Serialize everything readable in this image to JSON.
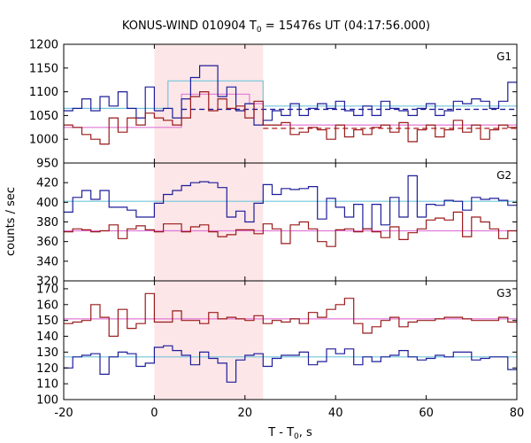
{
  "chart_data": {
    "type": "line",
    "title_main": "KONUS-WIND 010904 T",
    "title_sub": "0",
    "title_rest": " = 15476s UT (04:17:56.000)",
    "xlabel_main": "T - T",
    "xlabel_sub": "0",
    "xlabel_rest": ", s",
    "ylabel": "counts / sec",
    "xlim": [
      -20,
      80
    ],
    "x_ticks": [
      "-20",
      "0",
      "20",
      "40",
      "60",
      "80"
    ],
    "x_tick_values": [
      -20,
      0,
      20,
      40,
      60,
      80
    ],
    "highlight_interval": [
      0,
      24
    ],
    "colors": {
      "blue": "#1e1e9a",
      "red": "#9a1a1a",
      "cyan": "#72c6dc",
      "pink": "#e07ad6",
      "highlight": "#fde6e8",
      "dash_blue": "#1e1e9a",
      "dash_red": "#b01c1c"
    },
    "step_edges": [
      -20,
      -18,
      -16,
      -14,
      -12,
      -10,
      -8,
      -6,
      -4,
      -2,
      0,
      2,
      4,
      6,
      8,
      10,
      12,
      14,
      16,
      18,
      20,
      22,
      24,
      26,
      28,
      30,
      32,
      34,
      36,
      38,
      40,
      42,
      44,
      46,
      48,
      50,
      52,
      54,
      56,
      58,
      60,
      62,
      64,
      66,
      68,
      70,
      72,
      74,
      76,
      78,
      80
    ],
    "panels": [
      {
        "label": "G1",
        "ylim": [
          950,
          1200
        ],
        "y_ticks": [
          "950",
          "1000",
          "1050",
          "1100",
          "1150",
          "1200"
        ],
        "y_tick_values": [
          950,
          1000,
          1050,
          1100,
          1150,
          1200
        ],
        "series": [
          {
            "color": "blue",
            "values": [
              1060,
              1065,
              1085,
              1060,
              1090,
              1070,
              1100,
              1065,
              1045,
              1110,
              1060,
              1065,
              1045,
              1085,
              1130,
              1155,
              1155,
              1090,
              1110,
              1060,
              1075,
              1030,
              1040,
              1060,
              1050,
              1075,
              1050,
              1065,
              1075,
              1065,
              1080,
              1060,
              1050,
              1070,
              1050,
              1080,
              1065,
              1060,
              1050,
              1065,
              1075,
              1050,
              1060,
              1080,
              1075,
              1085,
              1080,
              1065,
              1080,
              1120
            ]
          },
          {
            "color": "red",
            "values": [
              1030,
              1025,
              1010,
              1000,
              990,
              1045,
              1015,
              1045,
              1030,
              1055,
              1045,
              1040,
              1030,
              1045,
              1090,
              1100,
              1060,
              1085,
              1065,
              1070,
              1045,
              1080,
              1030,
              1030,
              1035,
              1010,
              1015,
              1025,
              1020,
              1000,
              1030,
              1005,
              1020,
              1010,
              1025,
              1030,
              1015,
              1035,
              995,
              1020,
              1030,
              1005,
              1020,
              1040,
              1015,
              1030,
              1000,
              1020,
              1030,
              1025
            ]
          }
        ],
        "steps": [
          {
            "color": "cyan",
            "points": [
              [
                -20,
                1065
              ],
              [
                3,
                1065
              ],
              [
                3,
                1123
              ],
              [
                24,
                1123
              ],
              [
                24,
                1070
              ],
              [
                80,
                1070
              ]
            ]
          },
          {
            "color": "pink",
            "points": [
              [
                -20,
                1025
              ],
              [
                6,
                1025
              ],
              [
                6,
                1095
              ],
              [
                21,
                1095
              ],
              [
                21,
                1075
              ],
              [
                24,
                1075
              ],
              [
                24,
                1030
              ],
              [
                80,
                1030
              ]
            ]
          }
        ],
        "dashed": [
          {
            "color": "dash_blue",
            "y": 1063,
            "x": [
              6,
              80
            ]
          },
          {
            "color": "dash_red",
            "y": 1023,
            "x": [
              24,
              80
            ]
          }
        ]
      },
      {
        "label": "G2",
        "ylim": [
          320,
          440
        ],
        "y_ticks": [
          "320",
          "340",
          "360",
          "380",
          "400",
          "420"
        ],
        "y_tick_values": [
          320,
          340,
          360,
          380,
          400,
          420
        ],
        "series": [
          {
            "color": "blue",
            "values": [
              390,
              405,
              412,
              403,
              412,
              395,
              395,
              392,
              385,
              385,
              399,
              408,
              412,
              417,
              420,
              421,
              420,
              415,
              385,
              391,
              380,
              399,
              418,
              408,
              414,
              413,
              414,
              416,
              383,
              404,
              395,
              385,
              398,
              373,
              398,
              377,
              405,
              385,
              427,
              385,
              398,
              397,
              402,
              401,
              392,
              405,
              403,
              404,
              402,
              397
            ]
          },
          {
            "color": "red",
            "values": [
              370,
              373,
              372,
              370,
              371,
              377,
              363,
              373,
              376,
              372,
              370,
              378,
              378,
              370,
              375,
              377,
              370,
              365,
              367,
              372,
              372,
              368,
              378,
              373,
              358,
              377,
              380,
              373,
              360,
              355,
              372,
              373,
              370,
              373,
              370,
              364,
              375,
              362,
              369,
              373,
              382,
              384,
              382,
              390,
              365,
              385,
              380,
              373,
              363,
              371
            ]
          }
        ],
        "steps": [
          {
            "color": "cyan",
            "points": [
              [
                -20,
                401
              ],
              [
                80,
                401
              ]
            ]
          },
          {
            "color": "pink",
            "points": [
              [
                -20,
                371
              ],
              [
                80,
                371
              ]
            ]
          }
        ],
        "dashed": []
      },
      {
        "label": "G3",
        "ylim": [
          100,
          175
        ],
        "y_ticks": [
          "100",
          "110",
          "120",
          "130",
          "140",
          "150",
          "160",
          "170"
        ],
        "y_tick_values": [
          100,
          110,
          120,
          130,
          140,
          150,
          160,
          170
        ],
        "series": [
          {
            "color": "blue",
            "values": [
              120,
              127,
              128,
              129,
              116,
              127,
              130,
              129,
              121,
              123,
              133,
              134,
              131,
              128,
              122,
              130,
              126,
              123,
              111,
              125,
              128,
              129,
              121,
              126,
              128,
              128,
              130,
              122,
              124,
              132,
              129,
              132,
              122,
              127,
              124,
              127,
              128,
              131,
              127,
              125,
              126,
              128,
              127,
              130,
              130,
              125,
              126,
              127,
              127,
              119
            ]
          },
          {
            "color": "red",
            "values": [
              148,
              149,
              150,
              160,
              152,
              140,
              157,
              145,
              148,
              167,
              149,
              149,
              156,
              150,
              150,
              148,
              155,
              151,
              152,
              151,
              150,
              153,
              148,
              150,
              149,
              151,
              148,
              155,
              152,
              157,
              160,
              164,
              148,
              142,
              146,
              150,
              152,
              146,
              149,
              150,
              150,
              151,
              152,
              152,
              151,
              150,
              150,
              150,
              152,
              149
            ]
          }
        ],
        "steps": [
          {
            "color": "cyan",
            "points": [
              [
                -20,
                127
              ],
              [
                80,
                127
              ]
            ]
          },
          {
            "color": "pink",
            "points": [
              [
                -20,
                151
              ],
              [
                80,
                151
              ]
            ]
          }
        ],
        "dashed": []
      }
    ]
  }
}
